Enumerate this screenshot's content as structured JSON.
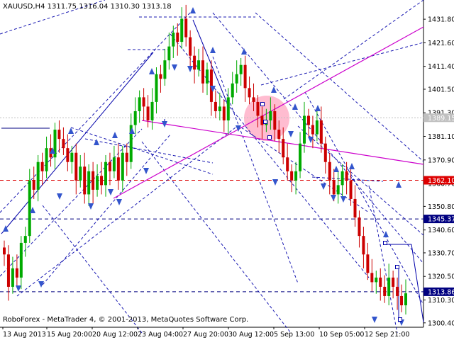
{
  "header": {
    "symbol_line": "XAUUSD,H4  1311.75 1316.04 1310.30 1313.18"
  },
  "footer": {
    "copyright": "RoboForex - MetaTrader 4, © 2001-2013, MetaQuotes Software Corp."
  },
  "colors": {
    "bull": "#00aa00",
    "bear": "#cc0000",
    "fan_lines": "#0000aa",
    "magenta_lines": "#cc00cc",
    "level_red": "#dd0000",
    "level_blue": "#000080",
    "arrows": "#3355cc",
    "highlight_circle": "#ffb0c8"
  },
  "chart_data": {
    "type": "candlestick",
    "symbol": "XAUUSD",
    "timeframe": "H4",
    "last_bar": {
      "open": 1311.75,
      "high": 1316.04,
      "low": 1310.3,
      "close": 1313.18
    },
    "ylim": [
      1298.5,
      1439.5
    ],
    "y_ticks": [
      "1431.80",
      "1421.60",
      "1411.40",
      "1401.50",
      "1391.30",
      "1381.10",
      "1370.90",
      "1360.70",
      "1350.80",
      "1340.60",
      "1330.70",
      "1320.50",
      "1310.30",
      "1300.40"
    ],
    "x_ticks": [
      "13 Aug 2013",
      "15 Aug 20:00",
      "20 Aug 12:00",
      "23 Aug 04:00",
      "27 Aug 20:00",
      "30 Aug 12:00",
      "5 Sep 13:00",
      "10 Sep 05:00",
      "12 Sep 21:00"
    ],
    "price_labels": [
      {
        "text": "1389.15",
        "price": 1389.15,
        "color": "#c0c0c0"
      },
      {
        "text": "1362.10",
        "price": 1362.1,
        "color": "#dd0000"
      },
      {
        "text": "1345.37",
        "price": 1345.37,
        "color": "#000080"
      },
      {
        "text": "1313.86",
        "price": 1313.86,
        "color": "#000080"
      }
    ],
    "levels": [
      {
        "price": 1389.15,
        "style": "dotted",
        "color": "#c0c0c0"
      },
      {
        "price": 1362.1,
        "style": "dashed",
        "color": "#dd0000"
      },
      {
        "price": 1345.37,
        "style": "dashed",
        "color": "#000080"
      },
      {
        "price": 1313.86,
        "style": "dashed",
        "color": "#000080"
      }
    ],
    "closes": [
      1330,
      1316,
      1324,
      1320,
      1335,
      1338,
      1362,
      1358,
      1370,
      1366,
      1376,
      1372,
      1384,
      1380,
      1376,
      1370,
      1374,
      1362,
      1368,
      1356,
      1366,
      1358,
      1364,
      1360,
      1370,
      1366,
      1372,
      1362,
      1374,
      1370,
      1386,
      1392,
      1398,
      1394,
      1388,
      1396,
      1408,
      1406,
      1414,
      1420,
      1426,
      1422,
      1432,
      1424,
      1416,
      1410,
      1414,
      1404,
      1410,
      1396,
      1392,
      1394,
      1388,
      1398,
      1404,
      1408,
      1412,
      1402,
      1398,
      1396,
      1390,
      1386,
      1388,
      1392,
      1384,
      1380,
      1372,
      1366,
      1362,
      1366,
      1378,
      1390,
      1386,
      1382,
      1388,
      1378,
      1370,
      1362,
      1356,
      1360,
      1366,
      1362,
      1354,
      1346,
      1338,
      1330,
      1322,
      1318,
      1320,
      1316,
      1312,
      1320,
      1316,
      1312,
      1308,
      1313.18
    ]
  }
}
